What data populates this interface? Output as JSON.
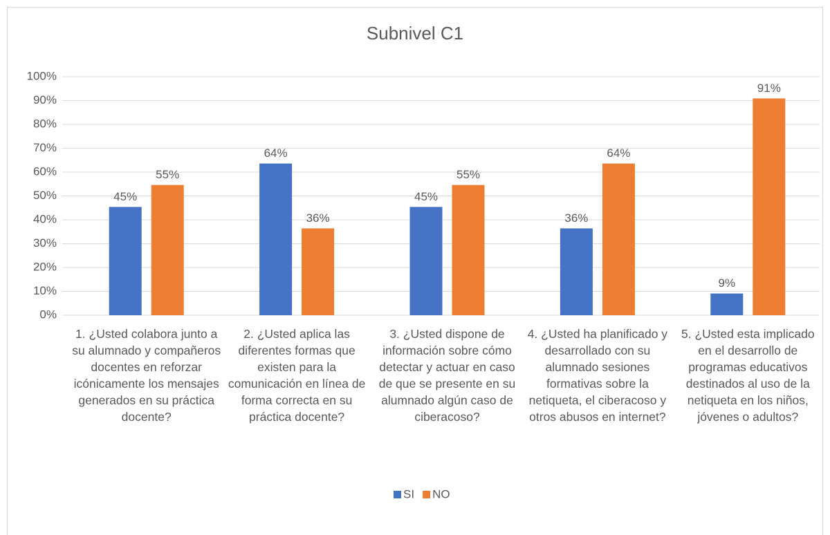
{
  "chart_data": {
    "type": "bar",
    "title": "Subnivel C1",
    "categories": [
      "1. ¿Usted colabora junto a su alumnado y compañeros docentes en reforzar icónicamente los mensajes generados en su práctica docente?",
      "2. ¿Usted aplica las diferentes formas que existen para la comunicación en línea de forma correcta en su práctica docente?",
      "3. ¿Usted dispone de información sobre cómo detectar y actuar en caso de que se presente en su alumnado algún caso de ciberacoso?",
      "4. ¿Usted ha planificado y desarrollado con su alumnado sesiones formativas sobre la netiqueta, el ciberacoso y otros abusos en internet?",
      "5. ¿Usted esta implicado en el desarrollo de programas educativos destinados al uso de la netiqueta en los niños, jóvenes o adultos?"
    ],
    "series": [
      {
        "name": "SI",
        "color": "#4472c4",
        "values": [
          45.4,
          63.6,
          45.4,
          36.4,
          9.1
        ],
        "value_labels": [
          "45%",
          "64%",
          "45%",
          "36%",
          "9%"
        ]
      },
      {
        "name": "NO",
        "color": "#ed7d31",
        "values": [
          54.6,
          36.4,
          54.6,
          63.6,
          90.9
        ],
        "value_labels": [
          "55%",
          "36%",
          "55%",
          "64%",
          "91%"
        ]
      }
    ],
    "ylim": [
      0,
      100
    ],
    "yticks": [
      {
        "value": 0,
        "label": "0%"
      },
      {
        "value": 10,
        "label": "10%"
      },
      {
        "value": 20,
        "label": "20%"
      },
      {
        "value": 30,
        "label": "30%"
      },
      {
        "value": 40,
        "label": "40%"
      },
      {
        "value": 50,
        "label": "50%"
      },
      {
        "value": 60,
        "label": "60%"
      },
      {
        "value": 70,
        "label": "70%"
      },
      {
        "value": 80,
        "label": "80%"
      },
      {
        "value": 90,
        "label": "90%"
      },
      {
        "value": 100,
        "label": "100%"
      }
    ],
    "grid": true,
    "legend": "bottom"
  }
}
